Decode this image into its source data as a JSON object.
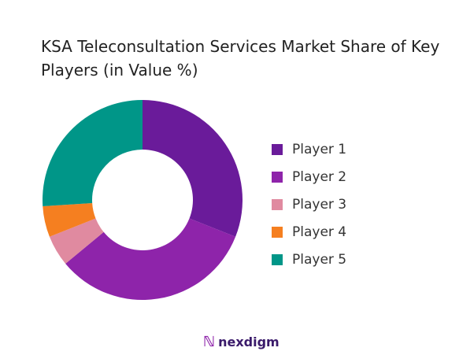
{
  "chart_data": {
    "type": "pie",
    "donut": true,
    "title": "KSA Teleconsultation Services Market Share of Key Players (in Value %)",
    "categories": [
      "Player 1",
      "Player 2",
      "Player 3",
      "Player 4",
      "Player 5"
    ],
    "values": [
      31,
      33,
      5,
      5,
      26
    ],
    "unit": "%",
    "colors": [
      "#6a1b9a",
      "#8e24aa",
      "#e08aa0",
      "#f57f20",
      "#009688"
    ],
    "legend_position": "right"
  },
  "brand": {
    "name": "nexdigm"
  }
}
